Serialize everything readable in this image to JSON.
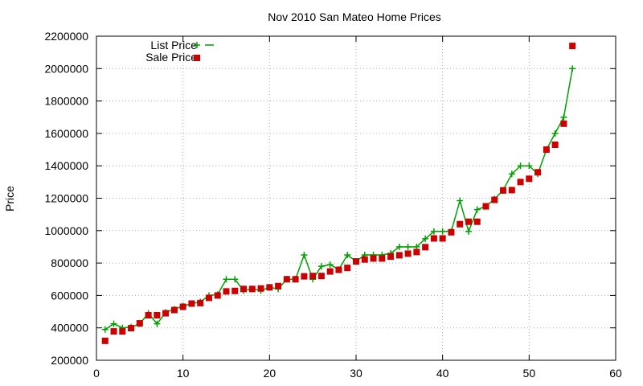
{
  "chart_data": {
    "type": "line",
    "title": "Nov 2010 San Mateo Home Prices",
    "xlabel": "",
    "ylabel": "Price",
    "xlim": [
      0,
      60
    ],
    "ylim": [
      200000,
      2200000
    ],
    "xticks": [
      "0",
      "10",
      "20",
      "30",
      "40",
      "50",
      "60"
    ],
    "yticks": [
      "200000",
      "400000",
      "600000",
      "800000",
      "1000000",
      "1200000",
      "1400000",
      "1600000",
      "1800000",
      "2000000",
      "2200000"
    ],
    "grid": true,
    "legend_position": "top-left",
    "series": [
      {
        "name": "List Price",
        "style": "linespoints",
        "color": "#00a000",
        "points": [
          [
            1,
            390000
          ],
          [
            2,
            425000
          ],
          [
            3,
            400000
          ],
          [
            4,
            405000
          ],
          [
            5,
            425000
          ],
          [
            6,
            490000
          ],
          [
            7,
            425000
          ],
          [
            8,
            495000
          ],
          [
            9,
            515000
          ],
          [
            10,
            535000
          ],
          [
            11,
            550000
          ],
          [
            12,
            560000
          ],
          [
            13,
            600000
          ],
          [
            14,
            605000
          ],
          [
            15,
            700000
          ],
          [
            16,
            700000
          ],
          [
            17,
            630000
          ],
          [
            18,
            640000
          ],
          [
            19,
            630000
          ],
          [
            20,
            650000
          ],
          [
            21,
            640000
          ],
          [
            22,
            700000
          ],
          [
            23,
            700000
          ],
          [
            24,
            850000
          ],
          [
            25,
            700000
          ],
          [
            26,
            780000
          ],
          [
            27,
            790000
          ],
          [
            28,
            760000
          ],
          [
            29,
            850000
          ],
          [
            30,
            810000
          ],
          [
            31,
            850000
          ],
          [
            32,
            850000
          ],
          [
            33,
            850000
          ],
          [
            34,
            860000
          ],
          [
            35,
            900000
          ],
          [
            36,
            900000
          ],
          [
            37,
            900000
          ],
          [
            38,
            950000
          ],
          [
            39,
            995000
          ],
          [
            40,
            995000
          ],
          [
            41,
            995000
          ],
          [
            42,
            1185000
          ],
          [
            43,
            995000
          ],
          [
            44,
            1130000
          ],
          [
            45,
            1150000
          ],
          [
            46,
            1195000
          ],
          [
            47,
            1250000
          ],
          [
            48,
            1350000
          ],
          [
            49,
            1400000
          ],
          [
            50,
            1400000
          ],
          [
            51,
            1350000
          ],
          [
            52,
            1500000
          ],
          [
            53,
            1600000
          ],
          [
            54,
            1700000
          ],
          [
            55,
            2000000
          ]
        ]
      },
      {
        "name": "Sale Price",
        "style": "points",
        "color": "#cc0000",
        "points": [
          [
            1,
            320000
          ],
          [
            2,
            378000
          ],
          [
            3,
            378000
          ],
          [
            4,
            398000
          ],
          [
            5,
            428000
          ],
          [
            6,
            478000
          ],
          [
            7,
            478000
          ],
          [
            8,
            490000
          ],
          [
            9,
            510000
          ],
          [
            10,
            530000
          ],
          [
            11,
            550000
          ],
          [
            12,
            553000
          ],
          [
            13,
            585000
          ],
          [
            14,
            600000
          ],
          [
            15,
            625000
          ],
          [
            16,
            628000
          ],
          [
            17,
            640000
          ],
          [
            18,
            640000
          ],
          [
            19,
            643000
          ],
          [
            20,
            650000
          ],
          [
            21,
            658000
          ],
          [
            22,
            700000
          ],
          [
            23,
            700000
          ],
          [
            24,
            718000
          ],
          [
            25,
            720000
          ],
          [
            26,
            720000
          ],
          [
            27,
            748000
          ],
          [
            28,
            758000
          ],
          [
            29,
            770000
          ],
          [
            30,
            810000
          ],
          [
            31,
            822000
          ],
          [
            32,
            828000
          ],
          [
            33,
            828000
          ],
          [
            34,
            840000
          ],
          [
            35,
            848000
          ],
          [
            36,
            858000
          ],
          [
            37,
            868000
          ],
          [
            38,
            898000
          ],
          [
            39,
            952000
          ],
          [
            40,
            952000
          ],
          [
            41,
            990000
          ],
          [
            42,
            1040000
          ],
          [
            43,
            1055000
          ],
          [
            44,
            1055000
          ],
          [
            45,
            1150000
          ],
          [
            46,
            1190000
          ],
          [
            47,
            1248000
          ],
          [
            48,
            1250000
          ],
          [
            49,
            1300000
          ],
          [
            50,
            1320000
          ],
          [
            51,
            1360000
          ],
          [
            52,
            1500000
          ],
          [
            53,
            1530000
          ],
          [
            54,
            1660000
          ],
          [
            55,
            2140000
          ]
        ]
      }
    ]
  }
}
